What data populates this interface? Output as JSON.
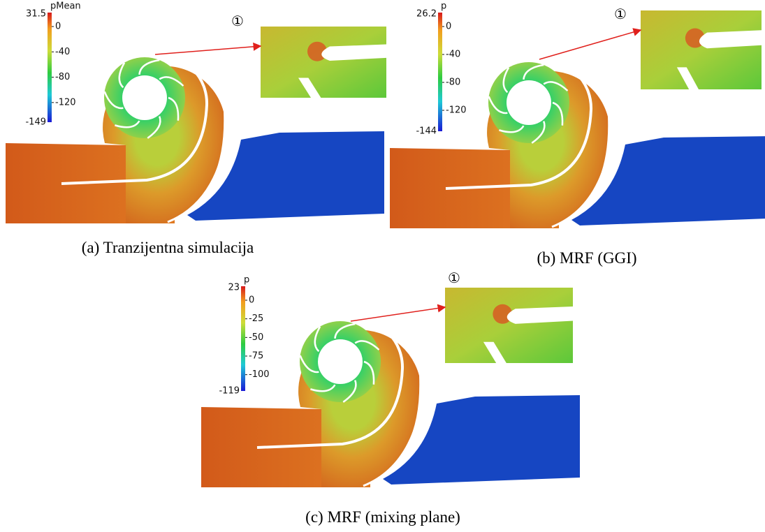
{
  "panels": [
    {
      "caption": "(a) Tranzijentna simulacija",
      "colorbar": {
        "label": "pMean",
        "max": "31.5",
        "min": "-149",
        "ticks": [
          "0",
          "-40",
          "-80",
          "-120"
        ]
      },
      "callout": "①"
    },
    {
      "caption": "(b) MRF (GGI)",
      "colorbar": {
        "label": "p",
        "max": "26.2",
        "min": "-144",
        "ticks": [
          "0",
          "-40",
          "-80",
          "-120"
        ]
      },
      "callout": "①"
    },
    {
      "caption": "(c) MRF (mixing plane)",
      "colorbar": {
        "label": "p",
        "max": "23",
        "min": "-119",
        "ticks": [
          "0",
          "-25",
          "-50",
          "-75",
          "-100"
        ]
      },
      "callout": "①"
    }
  ]
}
